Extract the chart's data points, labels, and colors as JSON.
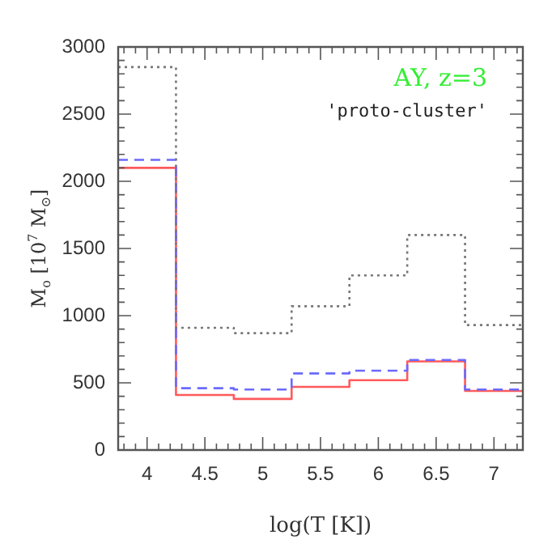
{
  "chart_data": {
    "type": "histogram",
    "xlabel": "log(T [K])",
    "ylabel": "M$_{o}$ [10$^{7}$ M$_{⊙}$]",
    "annotations": [
      "AY, z=3",
      "'proto-cluster'"
    ],
    "bins": [
      3.75,
      4.25,
      4.75,
      5.25,
      5.75,
      6.25,
      6.75,
      7.25
    ],
    "series": [
      {
        "color": "#777777",
        "line_style": "dotted",
        "values": [
          2850,
          910,
          870,
          1070,
          1300,
          1600,
          930
        ]
      },
      {
        "color": "#6a6aff",
        "line_style": "dashed",
        "values": [
          2160,
          460,
          450,
          570,
          590,
          670,
          450
        ]
      },
      {
        "color": "#ff5a5a",
        "line_style": "solid",
        "values": [
          2100,
          410,
          380,
          470,
          520,
          660,
          440
        ]
      }
    ],
    "xlim": [
      3.75,
      7.25
    ],
    "xticks": [
      {
        "value": 3.8,
        "label": null
      },
      {
        "value": 3.9,
        "label": null
      },
      4,
      {
        "value": 4.1,
        "label": null
      },
      {
        "value": 4.2,
        "label": null
      },
      {
        "value": 4.3,
        "label": null
      },
      {
        "value": 4.4,
        "label": null
      },
      4.5,
      {
        "value": 4.6,
        "label": null
      },
      {
        "value": 4.7,
        "label": null
      },
      {
        "value": 4.8,
        "label": null
      },
      {
        "value": 4.9,
        "label": null
      },
      5,
      {
        "value": 5.1,
        "label": null
      },
      {
        "value": 5.2,
        "label": null
      },
      {
        "value": 5.3,
        "label": null
      },
      {
        "value": 5.4,
        "label": null
      },
      5.5,
      {
        "value": 5.6,
        "label": null
      },
      {
        "value": 5.7,
        "label": null
      },
      {
        "value": 5.8,
        "label": null
      },
      {
        "value": 5.9,
        "label": null
      },
      6,
      {
        "value": 6.1,
        "label": null
      },
      {
        "value": 6.2,
        "label": null
      },
      {
        "value": 6.3,
        "label": null
      },
      {
        "value": 6.4,
        "label": null
      },
      6.5,
      {
        "value": 6.6,
        "label": null
      },
      {
        "value": 6.7,
        "label": null
      },
      {
        "value": 6.8,
        "label": null
      },
      {
        "value": 6.9,
        "label": null
      },
      7,
      {
        "value": 7.1,
        "label": null
      },
      {
        "value": 7.2,
        "label": null
      }
    ],
    "ylim": [
      0,
      3000
    ],
    "yticks": [
      0,
      {
        "value": 100,
        "label": null
      },
      {
        "value": 200,
        "label": null
      },
      {
        "value": 300,
        "label": null
      },
      {
        "value": 400,
        "label": null
      },
      500,
      {
        "value": 600,
        "label": null
      },
      {
        "value": 700,
        "label": null
      },
      {
        "value": 800,
        "label": null
      },
      {
        "value": 900,
        "label": null
      },
      1000,
      {
        "value": 1100,
        "label": null
      },
      {
        "value": 1200,
        "label": null
      },
      {
        "value": 1300,
        "label": null
      },
      {
        "value": 1400,
        "label": null
      },
      1500,
      {
        "value": 1600,
        "label": null
      },
      {
        "value": 1700,
        "label": null
      },
      {
        "value": 1800,
        "label": null
      },
      {
        "value": 1900,
        "label": null
      },
      2000,
      {
        "value": 2100,
        "label": null
      },
      {
        "value": 2200,
        "label": null
      },
      {
        "value": 2300,
        "label": null
      },
      {
        "value": 2400,
        "label": null
      },
      2500,
      {
        "value": 2600,
        "label": null
      },
      {
        "value": 2700,
        "label": null
      },
      {
        "value": 2800,
        "label": null
      },
      {
        "value": 2900,
        "label": null
      },
      3000
    ],
    "grid": false,
    "legend": false
  }
}
